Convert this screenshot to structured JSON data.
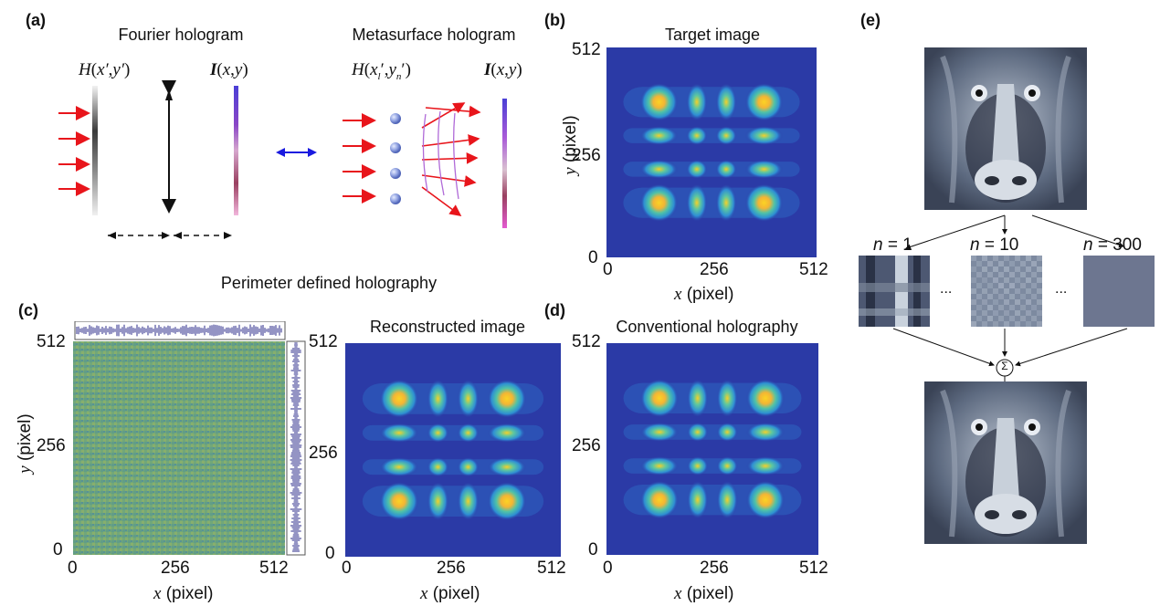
{
  "panels": {
    "a": {
      "label": "(a)",
      "fourier_title": "Fourier hologram",
      "meta_title": "Metasurface hologram",
      "fourier_h": "H(x′,y′)",
      "fourier_i": "I(x,y)",
      "meta_h": "H(x_l′,y_n′)",
      "meta_i": "I(x,y)"
    },
    "b": {
      "label": "(b)",
      "title": "Target image",
      "xlabel_var": "x",
      "xlabel_unit": " (pixel)",
      "ylabel_var": "y",
      "ylabel_unit": " (pixel)",
      "xticks": [
        "0",
        "256",
        "512"
      ],
      "yticks": [
        "512",
        "256",
        "0"
      ]
    },
    "c": {
      "label": "(c)",
      "section_title": "Perimeter defined holography",
      "xlabel_var": "x",
      "xlabel_unit": " (pixel)",
      "ylabel_var": "y",
      "ylabel_unit": " (pixel)",
      "xticks": [
        "0",
        "256",
        "512"
      ],
      "yticks": [
        "512",
        "256",
        "0"
      ],
      "recon_title": "Reconstructed image",
      "recon_xlabel_var": "x",
      "recon_xlabel_unit": " (pixel)",
      "recon_xticks": [
        "0",
        "256",
        "512"
      ],
      "recon_yticks": [
        "512",
        "256",
        "0"
      ]
    },
    "d": {
      "label": "(d)",
      "title": "Conventional holography",
      "xlabel_var": "x",
      "xlabel_unit": " (pixel)",
      "xticks": [
        "0",
        "256",
        "512"
      ],
      "yticks": [
        "512",
        "256",
        "0"
      ]
    },
    "e": {
      "label": "(e)",
      "n1": "1",
      "n2": "10",
      "n3": "300",
      "n_prefix": "n",
      "n_eq": " = ",
      "ellipsis": "...",
      "sum_symbol": "Σ"
    }
  },
  "colors": {
    "beam": "#e8151b",
    "blue_arrow": "#1a1adf",
    "colormap_low": "#2b2f8f",
    "colormap_high": "#f7d21a",
    "noise_bar": "#2a2a8a"
  },
  "chart_data": [
    {
      "type": "heatmap",
      "title": "Target image",
      "xlabel": "x (pixel)",
      "ylabel": "y (pixel)",
      "xlim": [
        0,
        512
      ],
      "ylim": [
        0,
        512
      ],
      "xticks": [
        0,
        256,
        512
      ],
      "yticks": [
        0,
        256,
        512
      ],
      "description_pattern": "4 x 4 grid of bright spots"
    },
    {
      "type": "heatmap",
      "title": "Reconstructed image",
      "xlim": [
        0,
        512
      ],
      "ylim": [
        0,
        512
      ],
      "xticks": [
        0,
        256,
        512
      ],
      "yticks": [
        0,
        256,
        512
      ]
    },
    {
      "type": "heatmap",
      "title": "Conventional holography",
      "xlim": [
        0,
        512
      ],
      "ylim": [
        0,
        512
      ],
      "xticks": [
        0,
        256,
        512
      ],
      "yticks": [
        0,
        256,
        512
      ]
    }
  ]
}
